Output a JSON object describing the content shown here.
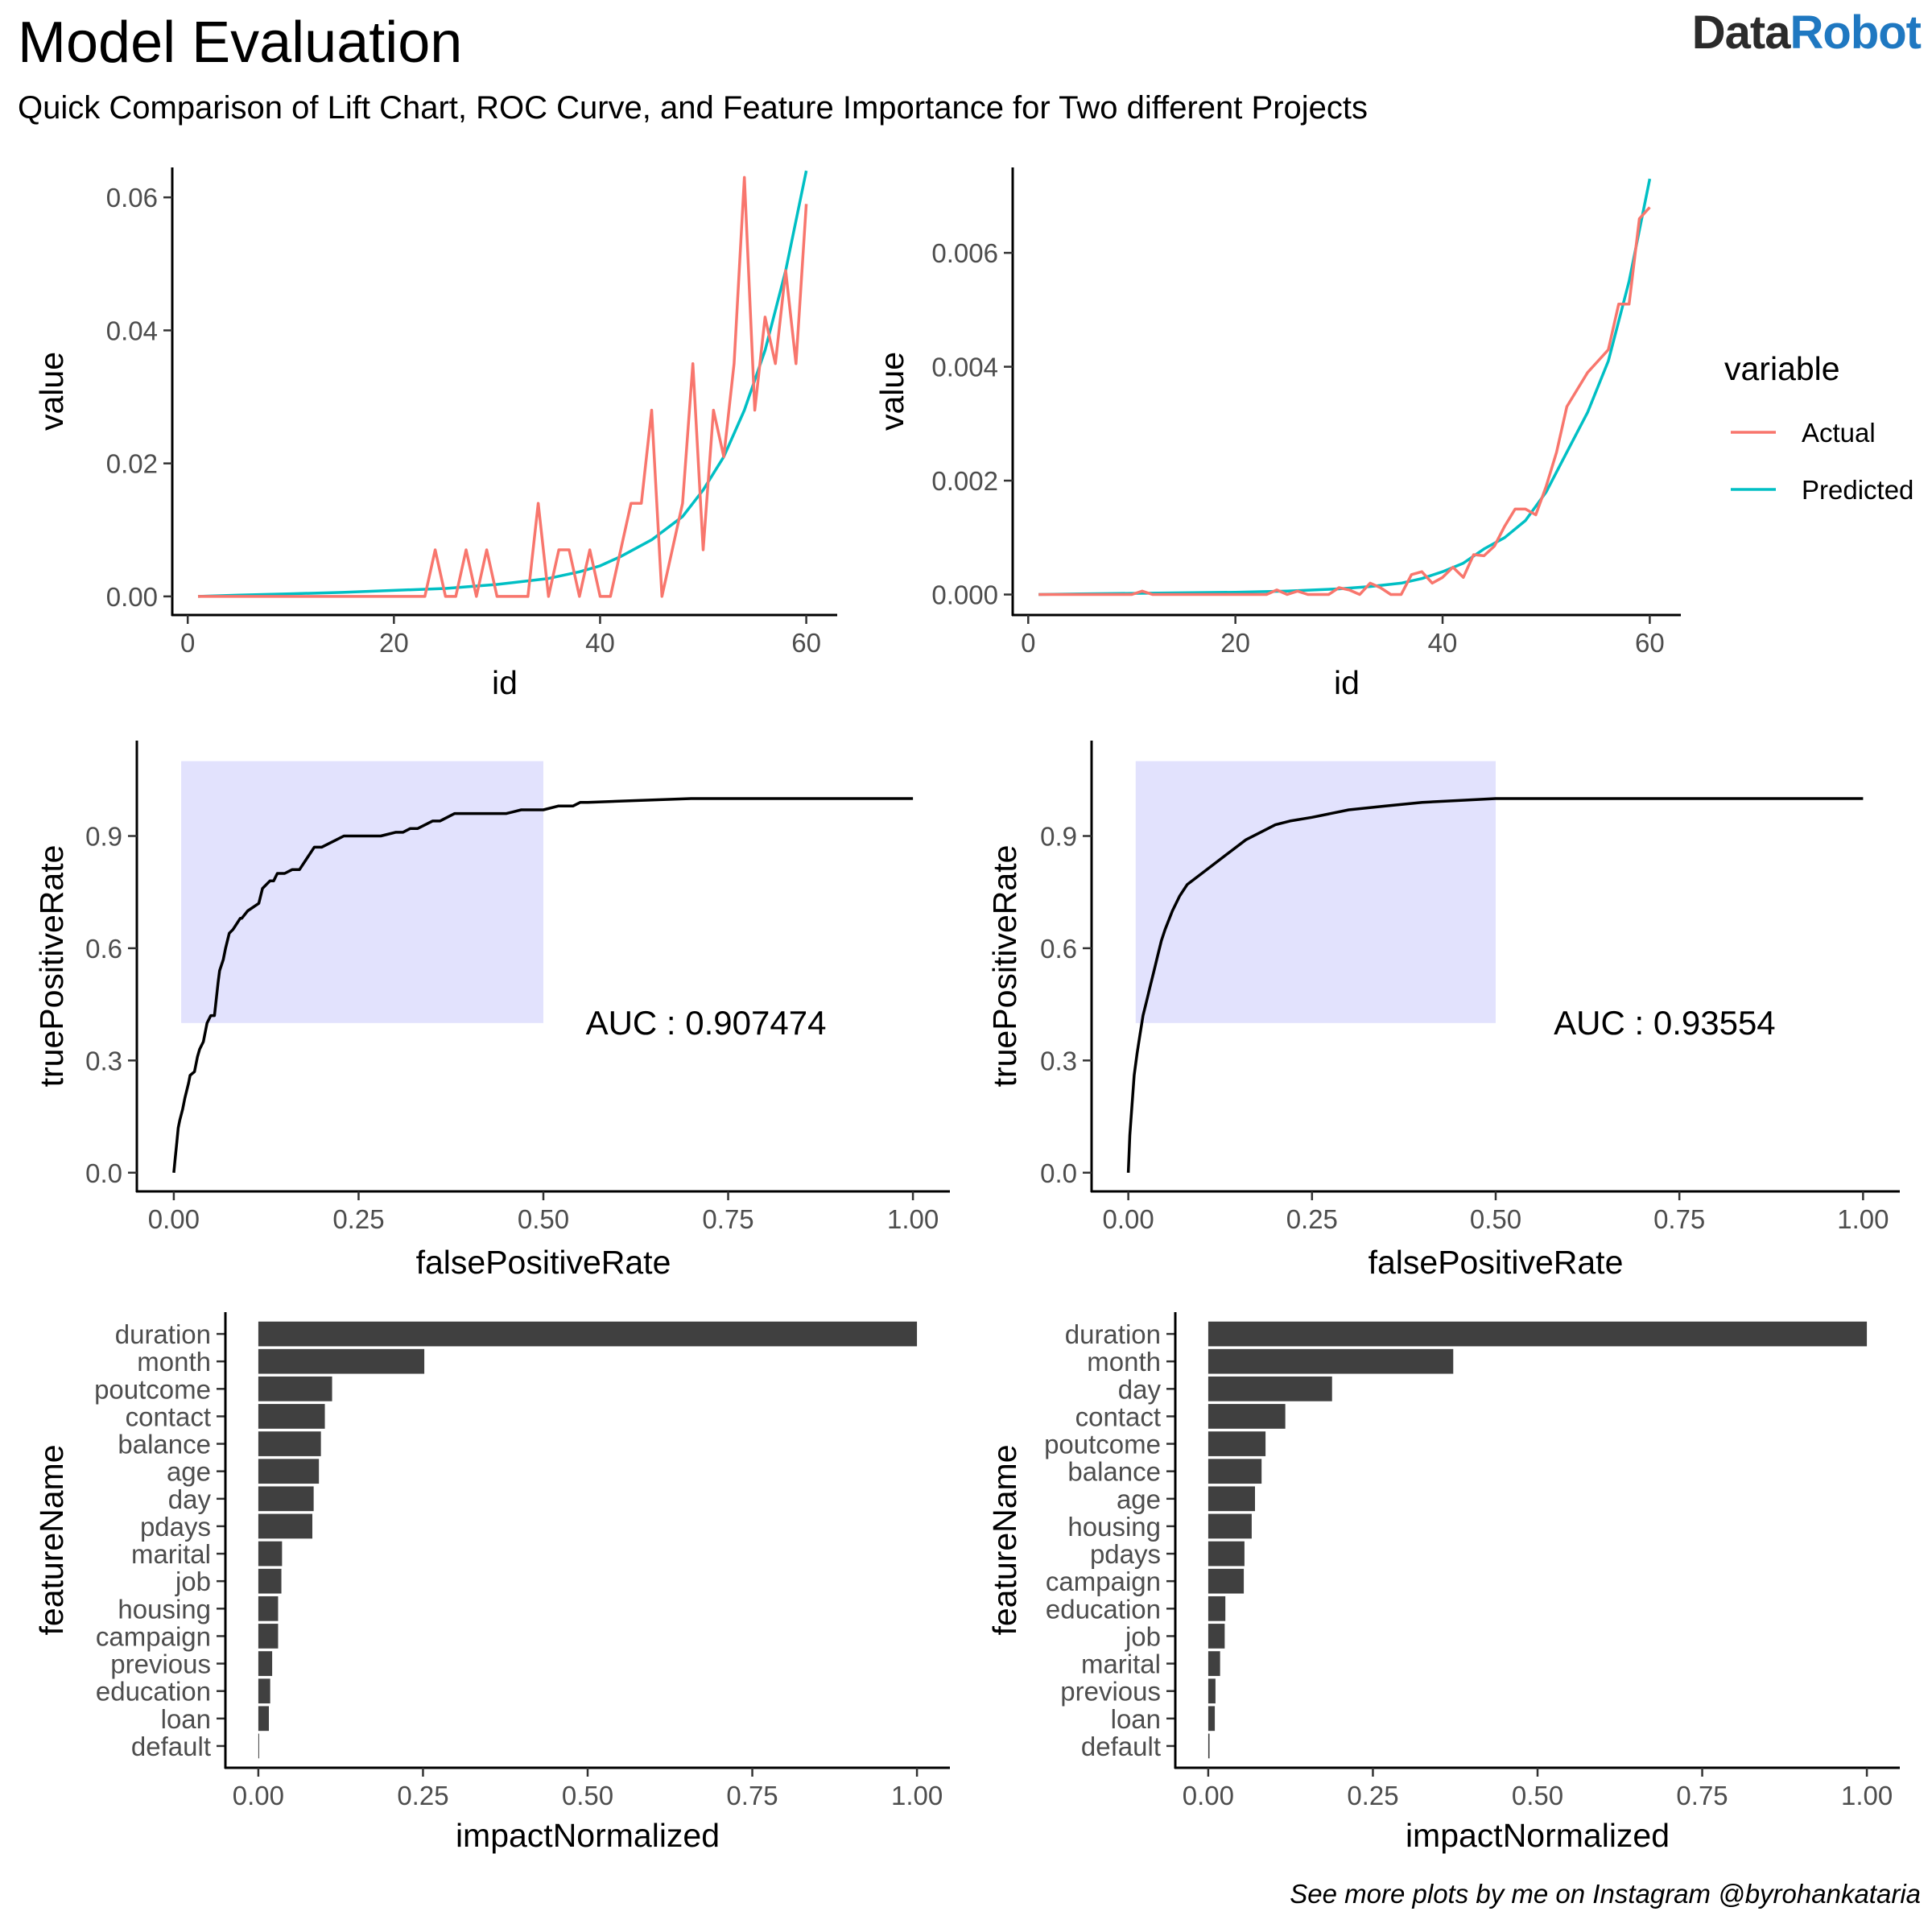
{
  "header": {
    "title": "Model Evaluation",
    "subtitle": "Quick Comparison of Lift Chart, ROC Curve, and Feature Importance for Two different Projects",
    "logo_part1": "Data",
    "logo_part2": "Robot"
  },
  "caption": "See more plots by me on Instagram @byrohankataria",
  "colors": {
    "actual": "#F8766D",
    "predicted": "#00BFC4",
    "highlight": "#E2E2FD",
    "bar": "#404040"
  },
  "chart_data": [
    {
      "type": "line",
      "panel": "lift-1",
      "xlabel": "id",
      "ylabel": "value",
      "xlim": [
        -1.5,
        63
      ],
      "ylim": [
        -0.0028,
        0.0645
      ],
      "x_ticks": [
        0,
        20,
        40,
        60
      ],
      "y_ticks": [
        0.0,
        0.02,
        0.04,
        0.06
      ],
      "y_tick_labels": [
        "0.00",
        "0.02",
        "0.04",
        "0.06"
      ],
      "series": [
        {
          "name": "Actual",
          "x": [
            1,
            2,
            3,
            4,
            5,
            6,
            7,
            8,
            9,
            10,
            11,
            12,
            13,
            14,
            15,
            16,
            17,
            18,
            19,
            20,
            21,
            22,
            23,
            24,
            25,
            26,
            27,
            28,
            29,
            30,
            31,
            32,
            33,
            34,
            35,
            36,
            37,
            38,
            39,
            40,
            41,
            42,
            43,
            44,
            45,
            46,
            47,
            48,
            49,
            50,
            51,
            52,
            53,
            54,
            55,
            56,
            57,
            58,
            59,
            60
          ],
          "values": [
            0,
            0,
            0,
            0,
            0,
            0,
            0,
            0,
            0,
            0,
            0,
            0,
            0,
            0,
            0,
            0,
            0,
            0,
            0,
            0,
            0,
            0,
            0,
            0.007,
            0,
            0,
            0.007,
            0,
            0.007,
            0,
            0,
            0,
            0,
            0.014,
            0,
            0.007,
            0.007,
            0,
            0.007,
            0,
            0,
            0.007,
            0.014,
            0.014,
            0.028,
            0,
            0.007,
            0.014,
            0.035,
            0.007,
            0.028,
            0.021,
            0.035,
            0.063,
            0.028,
            0.042,
            0.035,
            0.049,
            0.035,
            0.059
          ]
        },
        {
          "name": "Predicted",
          "x": [
            1,
            5,
            10,
            15,
            20,
            25,
            30,
            35,
            38,
            40,
            42,
            45,
            48,
            50,
            52,
            54,
            56,
            58,
            60
          ],
          "values": [
            0,
            0.0002,
            0.0004,
            0.0006,
            0.0009,
            0.0012,
            0.0018,
            0.0027,
            0.0037,
            0.0046,
            0.006,
            0.0085,
            0.012,
            0.016,
            0.021,
            0.028,
            0.037,
            0.049,
            0.064
          ]
        }
      ]
    },
    {
      "type": "line",
      "panel": "lift-2",
      "xlabel": "id",
      "ylabel": "value",
      "xlim": [
        -1.5,
        63
      ],
      "ylim": [
        -0.00036,
        0.0075
      ],
      "x_ticks": [
        0,
        20,
        40,
        60
      ],
      "y_ticks": [
        0.0,
        0.002,
        0.004,
        0.006
      ],
      "y_tick_labels": [
        "0.000",
        "0.002",
        "0.004",
        "0.006"
      ],
      "legend_title": "variable",
      "legend_position": "right",
      "series": [
        {
          "name": "Actual",
          "x": [
            1,
            2,
            3,
            4,
            5,
            6,
            7,
            8,
            9,
            10,
            11,
            12,
            13,
            14,
            15,
            16,
            17,
            18,
            19,
            20,
            21,
            22,
            23,
            24,
            25,
            26,
            27,
            28,
            29,
            30,
            31,
            32,
            33,
            34,
            35,
            36,
            37,
            38,
            39,
            40,
            41,
            42,
            43,
            44,
            45,
            46,
            47,
            48,
            49,
            50,
            51,
            52,
            53,
            54,
            55,
            56,
            57,
            58,
            59,
            60
          ],
          "values": [
            0,
            0,
            0,
            0,
            0,
            0,
            0,
            0,
            0,
            0,
            6e-05,
            0,
            0,
            0,
            0,
            0,
            0,
            0,
            0,
            0,
            0,
            0,
            0,
            8e-05,
            0,
            6e-05,
            0,
            0,
            0,
            0.00012,
            8e-05,
            0,
            0.0002,
            0.00012,
            0,
            0,
            0.00035,
            0.0004,
            0.0002,
            0.0003,
            0.00048,
            0.0003,
            0.0007,
            0.00068,
            0.00085,
            0.0012,
            0.0015,
            0.0015,
            0.0014,
            0.0019,
            0.0025,
            0.0033,
            0.0036,
            0.0039,
            0.0041,
            0.0043,
            0.0051,
            0.0051,
            0.0066,
            0.0068
          ]
        },
        {
          "name": "Predicted",
          "x": [
            1,
            5,
            10,
            15,
            20,
            25,
            30,
            33,
            36,
            38,
            40,
            42,
            44,
            46,
            48,
            50,
            52,
            54,
            56,
            58,
            60
          ],
          "values": [
            0,
            1e-05,
            2e-05,
            3e-05,
            4e-05,
            6e-05,
            0.0001,
            0.00014,
            0.0002,
            0.00028,
            0.0004,
            0.00055,
            0.0008,
            0.001,
            0.0013,
            0.0018,
            0.0025,
            0.0032,
            0.0041,
            0.0055,
            0.0073
          ]
        }
      ]
    },
    {
      "type": "line",
      "panel": "roc-1",
      "xlabel": "falsePositiveRate",
      "ylabel": "truePositiveRate",
      "xlim": [
        -0.05,
        1.05
      ],
      "ylim": [
        -0.05,
        1.155
      ],
      "x_ticks": [
        0,
        0.25,
        0.5,
        0.75,
        1
      ],
      "x_tick_labels": [
        "0.00",
        "0.25",
        "0.50",
        "0.75",
        "1.00"
      ],
      "y_ticks": [
        0,
        0.3,
        0.6,
        0.9
      ],
      "y_tick_labels": [
        "0.0",
        "0.3",
        "0.6",
        "0.9"
      ],
      "highlight": {
        "x": [
          0.01,
          0.5
        ],
        "y": [
          0.4,
          1.1
        ]
      },
      "annotation": "AUC : 0.907474",
      "annotation_position": {
        "x": 0.72,
        "y": 0.4
      },
      "series": [
        {
          "name": "ROC",
          "x": [
            0,
            0.002,
            0.004,
            0.006,
            0.008,
            0.012,
            0.015,
            0.02,
            0.022,
            0.028,
            0.032,
            0.035,
            0.04,
            0.045,
            0.05,
            0.055,
            0.06,
            0.062,
            0.067,
            0.07,
            0.075,
            0.08,
            0.09,
            0.092,
            0.1,
            0.115,
            0.12,
            0.13,
            0.135,
            0.14,
            0.15,
            0.16,
            0.17,
            0.18,
            0.19,
            0.2,
            0.21,
            0.22,
            0.23,
            0.24,
            0.25,
            0.26,
            0.27,
            0.28,
            0.3,
            0.31,
            0.32,
            0.33,
            0.34,
            0.35,
            0.36,
            0.38,
            0.4,
            0.42,
            0.45,
            0.47,
            0.5,
            0.52,
            0.54,
            0.55,
            0.56,
            0.7,
            0.8,
            1.0
          ],
          "values": [
            0,
            0.04,
            0.08,
            0.12,
            0.14,
            0.17,
            0.2,
            0.24,
            0.26,
            0.27,
            0.31,
            0.33,
            0.35,
            0.4,
            0.42,
            0.42,
            0.51,
            0.54,
            0.57,
            0.6,
            0.64,
            0.65,
            0.68,
            0.68,
            0.7,
            0.72,
            0.76,
            0.78,
            0.78,
            0.8,
            0.8,
            0.81,
            0.81,
            0.84,
            0.87,
            0.87,
            0.88,
            0.89,
            0.9,
            0.9,
            0.9,
            0.9,
            0.9,
            0.9,
            0.91,
            0.91,
            0.92,
            0.92,
            0.93,
            0.94,
            0.94,
            0.96,
            0.96,
            0.96,
            0.96,
            0.97,
            0.97,
            0.98,
            0.98,
            0.99,
            0.99,
            1.0,
            1.0,
            1.0
          ]
        }
      ]
    },
    {
      "type": "line",
      "panel": "roc-2",
      "xlabel": "falsePositiveRate",
      "ylabel": "truePositiveRate",
      "xlim": [
        -0.05,
        1.05
      ],
      "ylim": [
        -0.05,
        1.155
      ],
      "x_ticks": [
        0,
        0.25,
        0.5,
        0.75,
        1
      ],
      "x_tick_labels": [
        "0.00",
        "0.25",
        "0.50",
        "0.75",
        "1.00"
      ],
      "y_ticks": [
        0,
        0.3,
        0.6,
        0.9
      ],
      "y_tick_labels": [
        "0.0",
        "0.3",
        "0.6",
        "0.9"
      ],
      "highlight": {
        "x": [
          0.01,
          0.5
        ],
        "y": [
          0.4,
          1.1
        ]
      },
      "annotation": "AUC : 0.93554",
      "annotation_position": {
        "x": 0.73,
        "y": 0.4
      },
      "series": [
        {
          "name": "ROC",
          "x": [
            0,
            0.002,
            0.005,
            0.008,
            0.012,
            0.016,
            0.02,
            0.025,
            0.03,
            0.035,
            0.04,
            0.045,
            0.05,
            0.06,
            0.07,
            0.08,
            0.1,
            0.12,
            0.14,
            0.16,
            0.18,
            0.2,
            0.22,
            0.25,
            0.3,
            0.35,
            0.4,
            0.45,
            0.5,
            0.6,
            0.7,
            0.8,
            1.0
          ],
          "values": [
            0,
            0.1,
            0.18,
            0.26,
            0.32,
            0.37,
            0.42,
            0.46,
            0.5,
            0.54,
            0.58,
            0.62,
            0.65,
            0.7,
            0.74,
            0.77,
            0.8,
            0.83,
            0.86,
            0.89,
            0.91,
            0.93,
            0.94,
            0.95,
            0.97,
            0.98,
            0.99,
            0.995,
            1.0,
            1.0,
            1.0,
            1.0,
            1.0
          ]
        }
      ]
    },
    {
      "type": "bar",
      "panel": "importance-1",
      "orientation": "horizontal",
      "xlabel": "impactNormalized",
      "ylabel": "featureName",
      "xlim": [
        -0.05,
        1.05
      ],
      "x_ticks": [
        0,
        0.25,
        0.5,
        0.75,
        1
      ],
      "x_tick_labels": [
        "0.00",
        "0.25",
        "0.50",
        "0.75",
        "1.00"
      ],
      "categories": [
        "duration",
        "month",
        "poutcome",
        "contact",
        "balance",
        "age",
        "day",
        "pdays",
        "marital",
        "job",
        "housing",
        "campaign",
        "previous",
        "education",
        "loan",
        "default"
      ],
      "values": [
        1.0,
        0.252,
        0.112,
        0.101,
        0.095,
        0.092,
        0.084,
        0.082,
        0.036,
        0.035,
        0.03,
        0.03,
        0.021,
        0.018,
        0.016,
        0.001
      ]
    },
    {
      "type": "bar",
      "panel": "importance-2",
      "orientation": "horizontal",
      "xlabel": "impactNormalized",
      "ylabel": "featureName",
      "xlim": [
        -0.05,
        1.05
      ],
      "x_ticks": [
        0,
        0.25,
        0.5,
        0.75,
        1
      ],
      "x_tick_labels": [
        "0.00",
        "0.25",
        "0.50",
        "0.75",
        "1.00"
      ],
      "categories": [
        "duration",
        "month",
        "day",
        "contact",
        "poutcome",
        "balance",
        "age",
        "housing",
        "pdays",
        "campaign",
        "education",
        "job",
        "marital",
        "previous",
        "loan",
        "default"
      ],
      "values": [
        1.0,
        0.372,
        0.188,
        0.117,
        0.087,
        0.081,
        0.071,
        0.066,
        0.055,
        0.054,
        0.026,
        0.025,
        0.018,
        0.011,
        0.01,
        0.002
      ]
    }
  ]
}
